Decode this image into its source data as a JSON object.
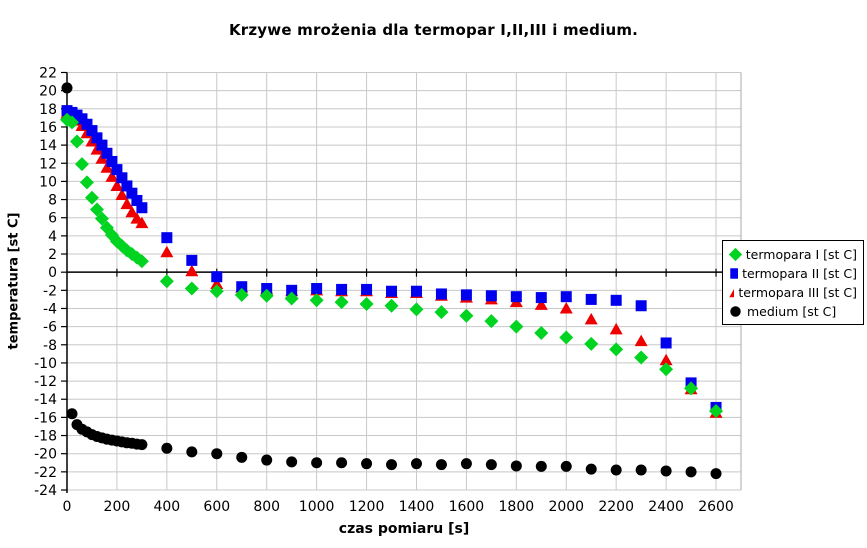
{
  "chart_data": {
    "type": "scatter",
    "title": "Krzywe mrożenia dla termopar I,II,III i medium.",
    "xlabel": "czas pomiaru [s]",
    "ylabel": "temperatura [st C]",
    "xlim": [
      0,
      2700
    ],
    "ylim": [
      -24,
      22
    ],
    "x_ticks": [
      0,
      200,
      400,
      600,
      800,
      1000,
      1200,
      1400,
      1600,
      1800,
      2000,
      2200,
      2400,
      2600
    ],
    "y_ticks": [
      22,
      20,
      18,
      16,
      14,
      12,
      10,
      8,
      6,
      4,
      2,
      0,
      -2,
      -4,
      -6,
      -8,
      -10,
      -12,
      -14,
      -16,
      -18,
      -20,
      -22,
      -24
    ],
    "grid": true,
    "legend_position": "right",
    "colors": {
      "grid": "#c8c8c8",
      "frame": "#aaaaaa",
      "axis": "#000000",
      "background": "#ffffff"
    },
    "x": [
      0,
      20,
      40,
      60,
      80,
      100,
      120,
      140,
      160,
      180,
      200,
      220,
      240,
      260,
      280,
      300,
      400,
      500,
      600,
      700,
      800,
      900,
      1000,
      1100,
      1200,
      1300,
      1400,
      1500,
      1600,
      1700,
      1800,
      1900,
      2000,
      2100,
      2200,
      2300,
      2400,
      2500,
      2600
    ],
    "series": [
      {
        "name": "termopara I [st C]",
        "marker": "diamond",
        "color": "#00d420",
        "y": [
          16.8,
          16.5,
          14.4,
          11.9,
          9.9,
          8.2,
          6.9,
          5.9,
          4.9,
          4.1,
          3.4,
          2.9,
          2.4,
          2.0,
          1.6,
          1.2,
          -1.0,
          -1.8,
          -2.1,
          -2.5,
          -2.6,
          -2.9,
          -3.1,
          -3.3,
          -3.5,
          -3.7,
          -4.1,
          -4.4,
          -4.8,
          -5.4,
          -6.0,
          -6.7,
          -7.2,
          -7.9,
          -8.5,
          -9.4,
          -10.7,
          -12.8,
          -15.3
        ]
      },
      {
        "name": "termopara II [st C]",
        "marker": "square",
        "color": "#0000ee",
        "y": [
          17.8,
          17.6,
          17.3,
          16.9,
          16.3,
          15.6,
          14.8,
          14.0,
          13.1,
          12.2,
          11.3,
          10.4,
          9.5,
          8.7,
          7.9,
          7.1,
          3.8,
          1.3,
          -0.5,
          -1.6,
          -1.8,
          -2.0,
          -1.8,
          -1.9,
          -1.9,
          -2.1,
          -2.1,
          -2.4,
          -2.5,
          -2.6,
          -2.7,
          -2.8,
          -2.7,
          -3.0,
          -3.1,
          -3.7,
          -7.8,
          -12.2,
          -14.9
        ]
      },
      {
        "name": "termopara III [st C]",
        "marker": "triangle",
        "color": "#ee0000",
        "y": [
          17.5,
          17.2,
          16.7,
          16.1,
          15.3,
          14.4,
          13.5,
          12.5,
          11.5,
          10.5,
          9.5,
          8.5,
          7.5,
          6.6,
          5.9,
          5.4,
          2.2,
          0.1,
          -1.3,
          -1.7,
          -1.9,
          -2.1,
          -2.0,
          -2.1,
          -2.1,
          -2.3,
          -2.3,
          -2.6,
          -2.8,
          -3.0,
          -3.3,
          -3.6,
          -4.0,
          -5.2,
          -6.3,
          -7.6,
          -9.7,
          -12.9,
          -15.5
        ]
      },
      {
        "name": "medium [st C]",
        "marker": "circle",
        "color": "#000000",
        "y": [
          20.3,
          -15.6,
          -16.8,
          -17.3,
          -17.6,
          -17.9,
          -18.1,
          -18.25,
          -18.4,
          -18.5,
          -18.6,
          -18.7,
          -18.8,
          -18.85,
          -18.95,
          -19.0,
          -19.4,
          -19.8,
          -20.0,
          -20.4,
          -20.7,
          -20.9,
          -21.0,
          -21.0,
          -21.1,
          -21.2,
          -21.1,
          -21.2,
          -21.1,
          -21.2,
          -21.35,
          -21.4,
          -21.4,
          -21.7,
          -21.8,
          -21.8,
          -21.9,
          -22.0,
          -22.2
        ]
      }
    ]
  }
}
